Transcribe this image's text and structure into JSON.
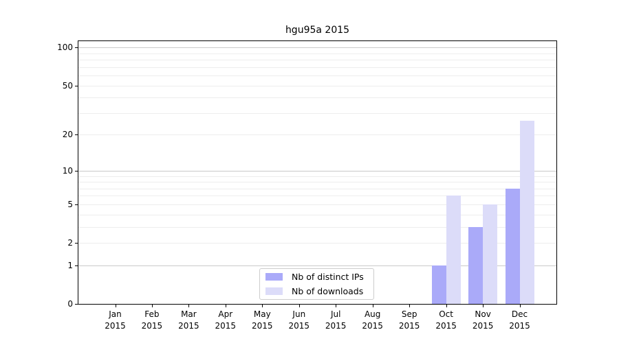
{
  "chart_data": {
    "type": "bar",
    "title": "hgu95a 2015",
    "categories": [
      "Jan",
      "Feb",
      "Mar",
      "Apr",
      "May",
      "Jun",
      "Jul",
      "Aug",
      "Sep",
      "Oct",
      "Nov",
      "Dec"
    ],
    "x_year_label": "2015",
    "series": [
      {
        "name": "Nb of distinct IPs",
        "color": "#aaaaf9",
        "values": [
          0,
          0,
          0,
          0,
          0,
          0,
          0,
          0,
          0,
          1,
          3,
          7
        ]
      },
      {
        "name": "Nb of downloads",
        "color": "#dcdcf9",
        "values": [
          0,
          0,
          0,
          0,
          0,
          0,
          0,
          0,
          0,
          6,
          5,
          26
        ]
      }
    ],
    "y_axis": {
      "scale": "log1p",
      "ticks": [
        0,
        1,
        2,
        5,
        10,
        20,
        50,
        100
      ],
      "range": [
        0,
        113
      ]
    },
    "grid": {
      "major_lines": [
        1,
        10,
        100
      ],
      "minor_lines": [
        2,
        3,
        4,
        5,
        6,
        7,
        8,
        9,
        20,
        30,
        40,
        50,
        60,
        70,
        80,
        90
      ],
      "major_color": "#c9c9c9",
      "minor_color": "#ededed"
    },
    "legend": {
      "position": "lower center"
    },
    "xlabel": "",
    "ylabel": ""
  }
}
